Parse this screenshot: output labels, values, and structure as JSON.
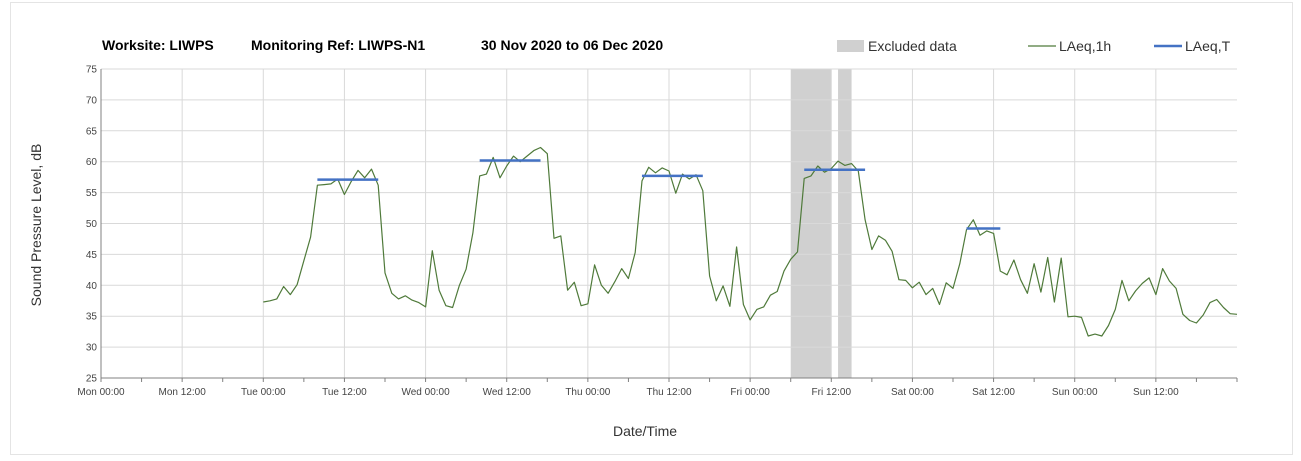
{
  "header": {
    "worksite": "Worksite: LIWPS",
    "monitoring_ref": "Monitoring Ref: LIWPS-N1",
    "date_range": "30 Nov 2020 to 06 Dec 2020"
  },
  "colors": {
    "excluded": "#d0d0d0",
    "laeq_1h": "#4f7a3a",
    "laeq_t": "#4472c4",
    "grid": "#d9d9d9",
    "axis": "#808080"
  },
  "chart_data": {
    "type": "line",
    "title": "",
    "xlabel": "Date/Time",
    "ylabel": "Sound Pressure Level, dB",
    "ylim": [
      25,
      75
    ],
    "yticks": [
      "25",
      "30",
      "35",
      "40",
      "45",
      "50",
      "55",
      "60",
      "65",
      "70",
      "75"
    ],
    "xlim_hours": [
      0,
      168
    ],
    "x_unit": "hours from Mon 00:00",
    "xticks": [
      "Mon 00:00",
      "Mon 12:00",
      "Tue 00:00",
      "Tue 12:00",
      "Wed 00:00",
      "Wed 12:00",
      "Thu 00:00",
      "Thu 12:00",
      "Fri 00:00",
      "Fri 12:00",
      "Sat 00:00",
      "Sat 12:00",
      "Sun 00:00",
      "Sun 12:00"
    ],
    "grid": "horizontal and vertical",
    "legend_position": "top-right",
    "legend": [
      "Excluded data",
      "LAeq,1h",
      "LAeq,T"
    ],
    "excluded_ranges": [
      [
        102,
        108
      ],
      [
        109,
        111
      ]
    ],
    "laeq_1h": {
      "name": "LAeq,1h",
      "x": [
        24,
        25,
        26,
        27,
        28,
        29,
        30,
        31,
        32,
        33,
        34,
        35,
        36,
        37,
        38,
        39,
        40,
        41,
        42,
        43,
        44,
        45,
        46,
        47,
        48,
        49,
        50,
        51,
        52,
        53,
        54,
        55,
        56,
        57,
        58,
        59,
        60,
        61,
        62,
        63,
        64,
        65,
        66,
        67,
        68,
        69,
        70,
        71,
        72,
        73,
        74,
        75,
        76,
        77,
        78,
        79,
        80,
        81,
        82,
        83,
        84,
        85,
        86,
        87,
        88,
        89,
        90,
        91,
        92,
        93,
        94,
        95,
        96,
        97,
        98,
        99,
        100,
        101,
        102,
        103,
        104,
        105,
        106,
        107,
        108,
        109,
        110,
        111,
        112,
        113,
        114,
        115,
        116,
        117,
        118,
        119,
        120,
        121,
        122,
        123,
        124,
        125,
        126,
        127,
        128,
        129,
        130,
        131,
        132,
        133,
        134,
        135,
        136,
        137,
        138,
        139,
        140,
        141,
        142,
        143,
        144,
        145,
        146,
        147,
        148,
        149,
        150,
        151,
        152,
        153,
        154,
        155,
        156,
        157,
        158,
        159,
        160,
        161,
        162,
        163,
        164,
        165,
        166,
        167,
        168
      ],
      "values": [
        37.3,
        37.5,
        37.8,
        39.8,
        38.5,
        40.1,
        44.0,
        47.8,
        56.2,
        56.3,
        56.4,
        57.2,
        54.7,
        56.8,
        58.6,
        57.4,
        58.8,
        56.2,
        42.0,
        38.7,
        37.8,
        38.3,
        37.6,
        37.2,
        36.5,
        45.6,
        39.2,
        36.7,
        36.4,
        40.0,
        42.6,
        48.5,
        57.7,
        58.0,
        60.7,
        57.4,
        59.3,
        60.9,
        60.0,
        60.9,
        61.8,
        62.3,
        61.3,
        47.6,
        48.0,
        39.2,
        40.5,
        36.7,
        37.0,
        43.3,
        40.0,
        38.7,
        40.6,
        42.7,
        41.1,
        45.3,
        56.9,
        59.1,
        58.2,
        59.0,
        58.5,
        54.9,
        58.0,
        57.2,
        57.9,
        55.3,
        41.5,
        37.5,
        39.9,
        36.6,
        46.2,
        36.9,
        34.4,
        36.1,
        36.5,
        38.4,
        39.0,
        42.3,
        44.2,
        45.4,
        57.3,
        57.7,
        59.3,
        58.3,
        58.9,
        60.1,
        59.4,
        59.7,
        58.5,
        50.6,
        45.8,
        48.0,
        47.3,
        45.5,
        40.9,
        40.8,
        39.6,
        40.5,
        38.5,
        39.5,
        36.9,
        40.4,
        39.5,
        43.5,
        49.0,
        50.6,
        48.1,
        48.8,
        48.4,
        42.3,
        41.7,
        44.1,
        40.9,
        38.7,
        43.5,
        38.9,
        44.5,
        37.3,
        44.4,
        34.9,
        35.0,
        34.8,
        31.8,
        32.1,
        31.8,
        33.5,
        36.1,
        40.8,
        37.5,
        39.1,
        40.3,
        41.2,
        38.5,
        42.7,
        40.7,
        39.5,
        35.3,
        34.3,
        33.9,
        35.2,
        37.2,
        37.7,
        36.4,
        35.4,
        35.3
      ]
    },
    "laeq_t": {
      "name": "LAeq,T",
      "segments": [
        {
          "x": [
            32,
            41
          ],
          "value": 57.1
        },
        {
          "x": [
            56,
            65
          ],
          "value": 60.2
        },
        {
          "x": [
            80,
            89
          ],
          "value": 57.7
        },
        {
          "x": [
            104,
            113
          ],
          "value": 58.7
        },
        {
          "x": [
            128,
            133
          ],
          "value": 49.2
        }
      ]
    }
  }
}
